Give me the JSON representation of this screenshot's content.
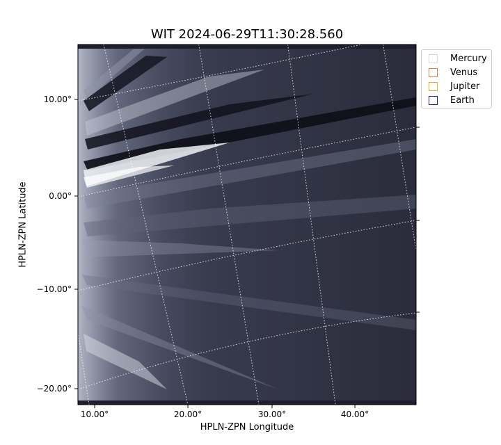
{
  "title": "WIT 2024-06-29T11:30:28.560",
  "axes": {
    "xlabel": "HPLN-ZPN Longitude",
    "ylabel": "HPLN-ZPN Latitude",
    "x_ticks": [
      "10.00°",
      "20.00°",
      "30.00°",
      "40.00°"
    ],
    "y_ticks": [
      "10.00°",
      "0.00°",
      "−10.00°",
      "−20.00°"
    ]
  },
  "legend": {
    "items": [
      {
        "label": "Mercury",
        "color": "#d9d9d9"
      },
      {
        "label": "Venus",
        "color": "#e07b39"
      },
      {
        "label": "Jupiter",
        "color": "#e8b020"
      },
      {
        "label": "Earth",
        "color": "#1a1a80"
      }
    ]
  },
  "colors": {
    "image_dark": "#2b2d3e",
    "image_bright": "#e6eaf0",
    "grid": "#ffffff"
  }
}
